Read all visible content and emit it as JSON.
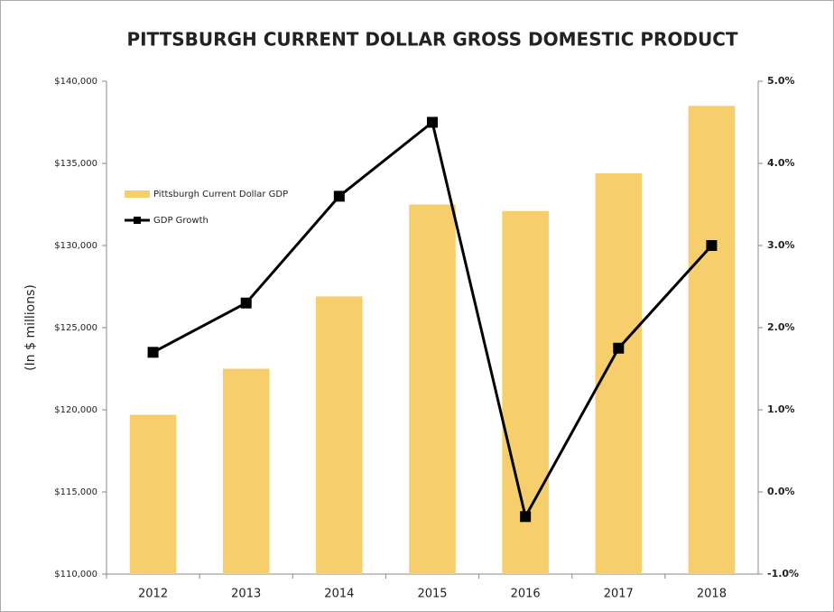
{
  "chart_data": {
    "type": "bar",
    "title": "PITTSBURGH CURRENT DOLLAR GROSS DOMESTIC PRODUCT",
    "y_label": "(In $ millions)",
    "categories": [
      "2012",
      "2013",
      "2014",
      "2015",
      "2016",
      "2017",
      "2018"
    ],
    "series": [
      {
        "name": "Pittsburgh Current Dollar GDP",
        "type": "bar",
        "color": "#f6cf6c",
        "values": [
          119700,
          122500,
          126900,
          132500,
          132100,
          134400,
          138500
        ]
      },
      {
        "name": "GDP Growth",
        "type": "line",
        "axis": "y2",
        "color": "#000000",
        "values": [
          1.7,
          2.3,
          3.6,
          4.5,
          -0.3,
          1.75,
          3.0
        ]
      }
    ],
    "ylim": [
      110000,
      140000
    ],
    "yticks": [
      {
        "value": 110000,
        "label": "$110,000"
      },
      {
        "value": 115000,
        "label": "$115,000"
      },
      {
        "value": 120000,
        "label": "$120,000"
      },
      {
        "value": 125000,
        "label": "$125,000"
      },
      {
        "value": 130000,
        "label": "$130,000"
      },
      {
        "value": 135000,
        "label": "$135,000"
      },
      {
        "value": 140000,
        "label": "$140,000"
      }
    ],
    "y2lim": [
      -1,
      5
    ],
    "y2ticks": [
      {
        "value": -1,
        "label": "-1.0%"
      },
      {
        "value": 0,
        "label": "0.0%"
      },
      {
        "value": 1,
        "label": "1.0%"
      },
      {
        "value": 2,
        "label": "2.0%"
      },
      {
        "value": 3,
        "label": "3.0%"
      },
      {
        "value": 4,
        "label": "4.0%"
      },
      {
        "value": 5,
        "label": "5.0%"
      }
    ],
    "grid": false,
    "legend": "upper left"
  }
}
